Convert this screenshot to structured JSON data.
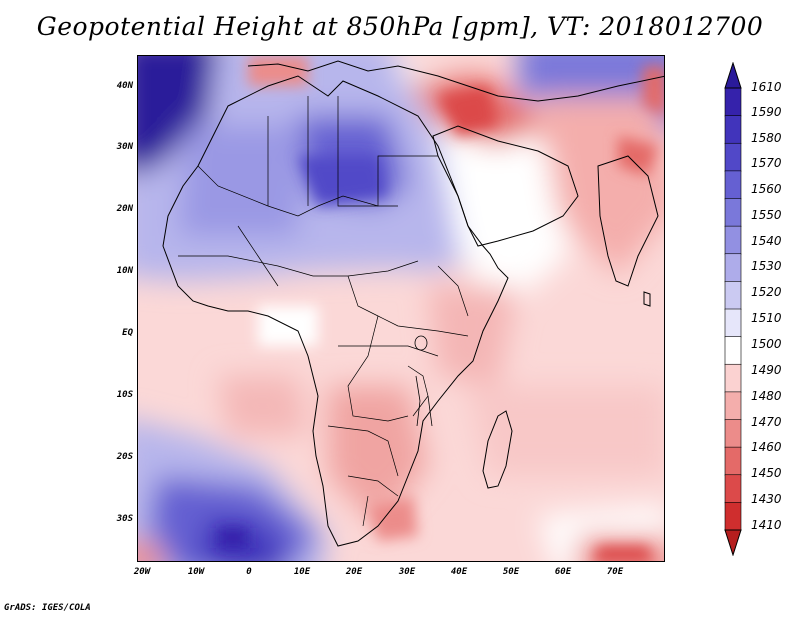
{
  "title": "Geopotential Height at 850hPa [gpm], VT: 2018012700",
  "variable": "Geopotential Height",
  "level": "850hPa",
  "units": "gpm",
  "valid_time": "2018012700",
  "latitude_labels": [
    "40N",
    "30N",
    "20N",
    "10N",
    "EQ",
    "10S",
    "20S",
    "30S"
  ],
  "longitude_labels": [
    "20W",
    "10W",
    "0",
    "10E",
    "20E",
    "30E",
    "40E",
    "50E",
    "60E",
    "70E"
  ],
  "colorbar": {
    "levels": [
      "1610",
      "1590",
      "1580",
      "1570",
      "1560",
      "1550",
      "1540",
      "1530",
      "1520",
      "1510",
      "1500",
      "1490",
      "1480",
      "1470",
      "1460",
      "1450",
      "1430",
      "1410"
    ],
    "colors": [
      "#2a1a9a",
      "#3522ab",
      "#4134bb",
      "#5148c8",
      "#6560d2",
      "#7a78da",
      "#9290e2",
      "#aeacea",
      "#cbcaf2",
      "#e6e6fa",
      "#ffffff",
      "#fbd2d1",
      "#f4aeac",
      "#ec8c8a",
      "#e46a68",
      "#dc4a4a",
      "#cf2e2e",
      "#b51e1e"
    ]
  },
  "footer": "GrADS: IGES/COLA"
}
